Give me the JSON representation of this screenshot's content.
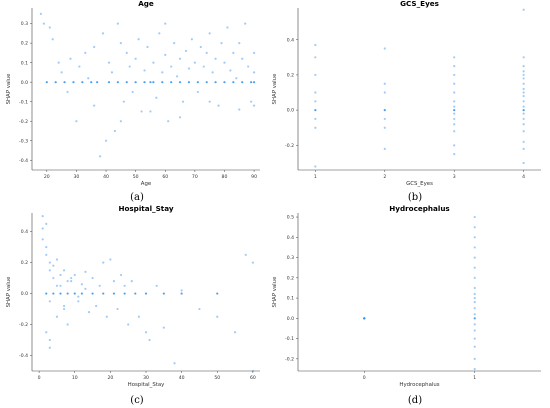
{
  "chart_data": [
    {
      "type": "scatter",
      "title": "Age",
      "xlabel": "Age",
      "ylabel": "SHAP value",
      "caption": "(a)",
      "xlim": [
        15,
        92
      ],
      "ylim": [
        -0.45,
        0.38
      ],
      "xticks": [
        20,
        30,
        40,
        50,
        60,
        70,
        80,
        90
      ],
      "yticks": [
        -0.4,
        -0.3,
        -0.2,
        -0.1,
        0.0,
        0.1,
        0.2,
        0.3
      ],
      "x": [
        18,
        19,
        21,
        22,
        24,
        25,
        27,
        28,
        30,
        31,
        33,
        34,
        36,
        36,
        38,
        39,
        40,
        41,
        42,
        43,
        44,
        45,
        46,
        47,
        48,
        49,
        50,
        51,
        52,
        53,
        54,
        55,
        56,
        57,
        58,
        59,
        60,
        61,
        62,
        63,
        64,
        65,
        66,
        67,
        68,
        69,
        70,
        71,
        72,
        73,
        74,
        75,
        76,
        77,
        78,
        79,
        80,
        81,
        82,
        83,
        84,
        85,
        86,
        87,
        88,
        89,
        90,
        90,
        90,
        90,
        20,
        23,
        26,
        29,
        32,
        35,
        37,
        41,
        44,
        47,
        50,
        53,
        56,
        59,
        62,
        65,
        68,
        71,
        74,
        77,
        80,
        83,
        86,
        89,
        45,
        55,
        65,
        75,
        85,
        60
      ],
      "y": [
        0.35,
        0.3,
        0.28,
        0.22,
        0.1,
        0.05,
        -0.05,
        0.12,
        -0.2,
        0.08,
        0.15,
        0.02,
        0.18,
        -0.12,
        -0.38,
        0.25,
        -0.3,
        0.1,
        0.05,
        -0.25,
        0.3,
        0.2,
        -0.1,
        0.15,
        0.08,
        -0.05,
        0.12,
        0.22,
        -0.15,
        0.06,
        0.18,
        0.0,
        0.1,
        -0.08,
        0.25,
        0.05,
        0.14,
        -0.2,
        0.08,
        0.2,
        0.03,
        0.12,
        -0.1,
        0.16,
        0.07,
        0.22,
        0.1,
        -0.05,
        0.18,
        0.08,
        0.15,
        0.25,
        0.05,
        0.12,
        -0.12,
        0.2,
        0.1,
        0.28,
        0.06,
        0.15,
        0.02,
        0.2,
        0.12,
        0.3,
        0.08,
        -0.1,
        0.15,
        0.0,
        0.05,
        -0.12,
        0.0,
        0.0,
        0.0,
        0.0,
        0.0,
        0.0,
        0.0,
        0.0,
        0.0,
        0.0,
        0.0,
        0.0,
        0.0,
        0.0,
        0.0,
        0.0,
        0.0,
        0.0,
        0.0,
        0.0,
        0.0,
        0.0,
        0.0,
        0.0,
        -0.2,
        -0.15,
        -0.18,
        -0.1,
        -0.14,
        0.3
      ]
    },
    {
      "type": "scatter",
      "title": "GCS_Eyes",
      "xlabel": "GCS_Eyes",
      "ylabel": "SHAP value",
      "caption": "(b)",
      "xlim": [
        0.75,
        4.25
      ],
      "ylim": [
        -0.34,
        0.58
      ],
      "xticks": [
        1,
        2,
        3,
        4
      ],
      "yticks": [
        -0.2,
        0.0,
        0.2,
        0.4
      ],
      "x": [
        1,
        1,
        1,
        1,
        1,
        1,
        1,
        1,
        1,
        2,
        2,
        2,
        2,
        2,
        2,
        2,
        3,
        3,
        3,
        3,
        3,
        3,
        3,
        3,
        3,
        3,
        3,
        3,
        3,
        3,
        4,
        4,
        4,
        4,
        4,
        4,
        4,
        4,
        4,
        4,
        4,
        4,
        4,
        4,
        4,
        4,
        4,
        4,
        4,
        4
      ],
      "y": [
        0.37,
        0.3,
        0.2,
        0.1,
        0.05,
        0.0,
        -0.05,
        -0.1,
        -0.32,
        0.35,
        0.15,
        0.1,
        0.0,
        -0.05,
        -0.1,
        -0.22,
        0.3,
        0.25,
        0.2,
        0.15,
        0.1,
        0.05,
        0.02,
        0.0,
        -0.02,
        -0.05,
        -0.08,
        -0.12,
        -0.2,
        -0.25,
        0.57,
        0.3,
        0.25,
        0.22,
        0.2,
        0.18,
        0.15,
        0.12,
        0.1,
        0.08,
        0.05,
        0.02,
        0.0,
        -0.02,
        -0.05,
        -0.08,
        -0.12,
        -0.18,
        -0.22,
        -0.3
      ]
    },
    {
      "type": "scatter",
      "title": "Hospital_Stay",
      "xlabel": "Hospital_Stay",
      "ylabel": "SHAP value",
      "caption": "(c)",
      "xlim": [
        -2,
        62
      ],
      "ylim": [
        -0.5,
        0.52
      ],
      "xticks": [
        0,
        10,
        20,
        30,
        40,
        50,
        60
      ],
      "yticks": [
        -0.4,
        -0.2,
        0.0,
        0.2,
        0.4
      ],
      "x": [
        1,
        1,
        2,
        2,
        2,
        3,
        3,
        3,
        4,
        4,
        5,
        5,
        6,
        6,
        7,
        7,
        8,
        8,
        9,
        10,
        11,
        12,
        13,
        14,
        15,
        16,
        17,
        18,
        19,
        20,
        21,
        22,
        23,
        24,
        25,
        26,
        28,
        30,
        31,
        33,
        35,
        38,
        40,
        45,
        50,
        55,
        58,
        60,
        60,
        2,
        4,
        6,
        8,
        10,
        12,
        15,
        18,
        21,
        24,
        27,
        30,
        35,
        40,
        50,
        3,
        5,
        7,
        9,
        11,
        13,
        1,
        2,
        3
      ],
      "y": [
        0.42,
        0.35,
        0.3,
        0.25,
        -0.25,
        0.2,
        0.15,
        -0.3,
        0.18,
        0.1,
        0.22,
        -0.15,
        0.12,
        0.05,
        0.15,
        -0.1,
        0.08,
        -0.2,
        0.1,
        0.12,
        -0.05,
        0.06,
        0.14,
        -0.12,
        0.1,
        -0.08,
        0.05,
        0.2,
        -0.15,
        0.22,
        0.08,
        -0.1,
        0.12,
        0.05,
        -0.2,
        0.08,
        -0.15,
        -0.25,
        -0.3,
        0.05,
        -0.22,
        -0.45,
        0.02,
        -0.1,
        -0.15,
        -0.25,
        0.25,
        0.2,
        -0.5,
        0.0,
        0.0,
        0.0,
        0.0,
        0.0,
        0.0,
        0.0,
        0.0,
        0.0,
        0.0,
        0.0,
        0.0,
        0.0,
        0.0,
        0.0,
        -0.05,
        0.05,
        -0.08,
        0.08,
        -0.02,
        0.03,
        0.5,
        0.45,
        -0.35
      ]
    },
    {
      "type": "scatter",
      "title": "Hydrocephalus",
      "xlabel": "Hydrocephalus",
      "ylabel": "SHAP value",
      "caption": "(d)",
      "xlim": [
        -0.6,
        1.6
      ],
      "ylim": [
        -0.26,
        0.52
      ],
      "xticks": [
        0,
        1
      ],
      "yticks": [
        -0.2,
        -0.1,
        0.0,
        0.1,
        0.2,
        0.3,
        0.4,
        0.5
      ],
      "x": [
        0,
        0,
        0,
        1,
        1,
        1,
        1,
        1,
        1,
        1,
        1,
        1,
        1,
        1,
        1,
        1,
        1,
        1,
        1,
        1,
        1,
        1,
        1
      ],
      "y": [
        0.0,
        0.0,
        0.0,
        0.5,
        0.45,
        0.4,
        0.35,
        0.3,
        0.25,
        0.2,
        0.15,
        0.12,
        0.1,
        0.08,
        0.05,
        0.02,
        0.0,
        -0.03,
        -0.06,
        -0.1,
        -0.14,
        -0.2,
        -0.25
      ]
    }
  ]
}
